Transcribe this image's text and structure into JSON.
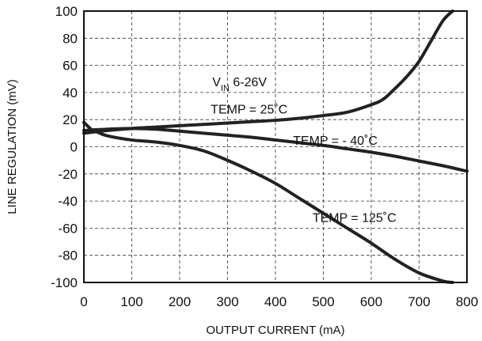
{
  "chart_data": {
    "type": "line",
    "title": "",
    "xlabel": "OUTPUT CURRENT (mA)",
    "ylabel": "LINE REGULATION (mV)",
    "xlim": [
      0,
      800
    ],
    "ylim": [
      -100,
      100
    ],
    "xticks": [
      0,
      100,
      200,
      300,
      400,
      500,
      600,
      700,
      800
    ],
    "yticks": [
      100,
      80,
      60,
      40,
      20,
      0,
      -20,
      -40,
      -60,
      -80,
      -100
    ],
    "grid": true,
    "legend": "none",
    "annotations": [
      {
        "text": "V",
        "sub": "IN",
        "suffix": " 6-26V",
        "x": 325,
        "y": 48
      },
      {
        "text": "TEMP = 25˚C",
        "x": 345,
        "y": 28
      },
      {
        "text": "TEMP = - 40˚C",
        "x": 525,
        "y": 5
      },
      {
        "text": "TEMP = 125˚C",
        "x": 565,
        "y": -52
      }
    ],
    "series": [
      {
        "x": [
          0,
          50,
          100,
          150,
          200,
          250,
          300,
          350,
          400,
          450,
          500,
          550,
          600,
          625,
          650,
          675,
          700,
          725,
          750,
          770
        ],
        "y": [
          10,
          12,
          13.5,
          14.5,
          15.5,
          16.5,
          17.5,
          18.5,
          19.5,
          21,
          23,
          25.5,
          31,
          35,
          43,
          52,
          63,
          78,
          93,
          100
        ]
      },
      {
        "x": [
          0,
          50,
          100,
          150,
          200,
          250,
          300,
          350,
          400,
          450,
          500,
          550,
          600,
          650,
          700,
          750,
          800
        ],
        "y": [
          12,
          13,
          13.5,
          13,
          11.5,
          10,
          8.5,
          7,
          5,
          3,
          1,
          -1.5,
          -4,
          -7,
          -10.5,
          -14,
          -18
        ]
      },
      {
        "x": [
          0,
          15,
          30,
          50,
          100,
          150,
          200,
          250,
          300,
          350,
          400,
          450,
          500,
          550,
          600,
          650,
          700,
          750,
          770
        ],
        "y": [
          18,
          13,
          10.5,
          8,
          5,
          3.5,
          1,
          -3,
          -10,
          -18,
          -27,
          -38,
          -49,
          -60,
          -71,
          -83,
          -93,
          -99,
          -100
        ]
      }
    ]
  }
}
